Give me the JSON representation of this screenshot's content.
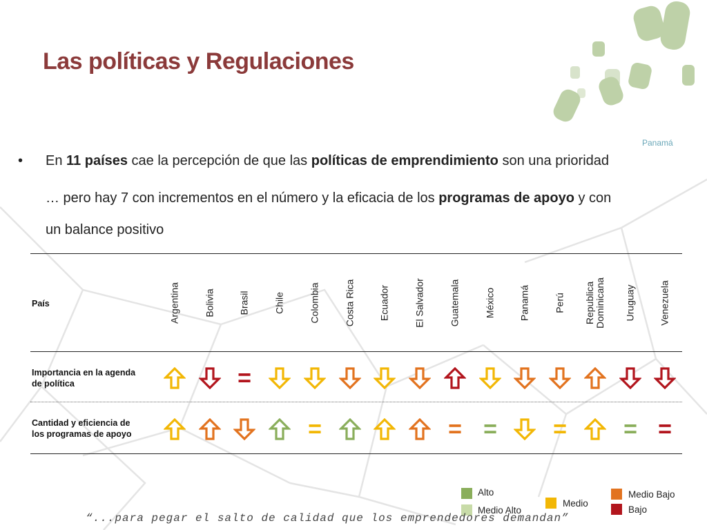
{
  "title": "Las políticas y Regulaciones",
  "corner_label": "Panamá",
  "bullet_symbol": "•",
  "paragraph": {
    "line1": [
      {
        "t": "En ",
        "b": false
      },
      {
        "t": "11 países",
        "b": true
      },
      {
        "t": " cae la percepción de que las ",
        "b": false
      },
      {
        "t": "políticas de emprendimiento",
        "b": true
      },
      {
        "t": " son una prioridad",
        "b": false
      }
    ],
    "line2": [
      {
        "t": "… pero hay 7 con incrementos en el número y la eficacia de los ",
        "b": false
      },
      {
        "t": "programas de apoyo",
        "b": true
      },
      {
        "t": " y con",
        "b": false
      }
    ],
    "line3": [
      {
        "t": "un balance positivo",
        "b": false
      }
    ]
  },
  "table": {
    "header_label": "País",
    "countries": [
      "Argentina",
      "Bolivia",
      "Brasil",
      "Chile",
      "Colombia",
      "Costa Rica",
      "Ecuador",
      "El Salvador",
      "Guatemala",
      "México",
      "Panamá",
      "Perú",
      "Republica Dominicana",
      "Uruguay",
      "Venezuela"
    ],
    "rows": [
      {
        "label_line1": "Importancia en la agenda",
        "label_line2": "de política",
        "cells": [
          {
            "dir": "up",
            "level": "medio"
          },
          {
            "dir": "down",
            "level": "bajo"
          },
          {
            "dir": "eq",
            "level": "bajo"
          },
          {
            "dir": "down",
            "level": "medio"
          },
          {
            "dir": "down",
            "level": "medio"
          },
          {
            "dir": "down",
            "level": "medio_bajo"
          },
          {
            "dir": "down",
            "level": "medio"
          },
          {
            "dir": "down",
            "level": "medio_bajo"
          },
          {
            "dir": "up",
            "level": "bajo"
          },
          {
            "dir": "down",
            "level": "medio"
          },
          {
            "dir": "down",
            "level": "medio_bajo"
          },
          {
            "dir": "down",
            "level": "medio_bajo"
          },
          {
            "dir": "up",
            "level": "medio_bajo"
          },
          {
            "dir": "down",
            "level": "bajo"
          },
          {
            "dir": "down",
            "level": "bajo"
          }
        ]
      },
      {
        "label_line1": "Cantidad y eficiencia de",
        "label_line2": "los programas de apoyo",
        "cells": [
          {
            "dir": "up",
            "level": "medio"
          },
          {
            "dir": "up",
            "level": "medio_bajo"
          },
          {
            "dir": "down",
            "level": "medio_bajo"
          },
          {
            "dir": "up",
            "level": "alto"
          },
          {
            "dir": "eq",
            "level": "medio"
          },
          {
            "dir": "up",
            "level": "alto"
          },
          {
            "dir": "up",
            "level": "medio"
          },
          {
            "dir": "up",
            "level": "medio_bajo"
          },
          {
            "dir": "eq",
            "level": "medio_bajo"
          },
          {
            "dir": "eq",
            "level": "alto"
          },
          {
            "dir": "down",
            "level": "medio"
          },
          {
            "dir": "eq",
            "level": "medio"
          },
          {
            "dir": "up",
            "level": "medio"
          },
          {
            "dir": "eq",
            "level": "alto"
          },
          {
            "dir": "eq",
            "level": "bajo"
          }
        ]
      }
    ]
  },
  "legend": {
    "alto": "Alto",
    "medio_alto": "Medio Alto",
    "medio": "Medio",
    "medio_bajo": "Medio Bajo",
    "bajo": "Bajo"
  },
  "colors": {
    "alto": "#8aae5b",
    "medio_alto": "#c8dba8",
    "medio": "#f2b705",
    "medio_bajo": "#e2731f",
    "bajo": "#b2151d",
    "title": "#8b3a3a"
  },
  "quote": "“...para pegar el salto de calidad que los emprendedores demandan”"
}
